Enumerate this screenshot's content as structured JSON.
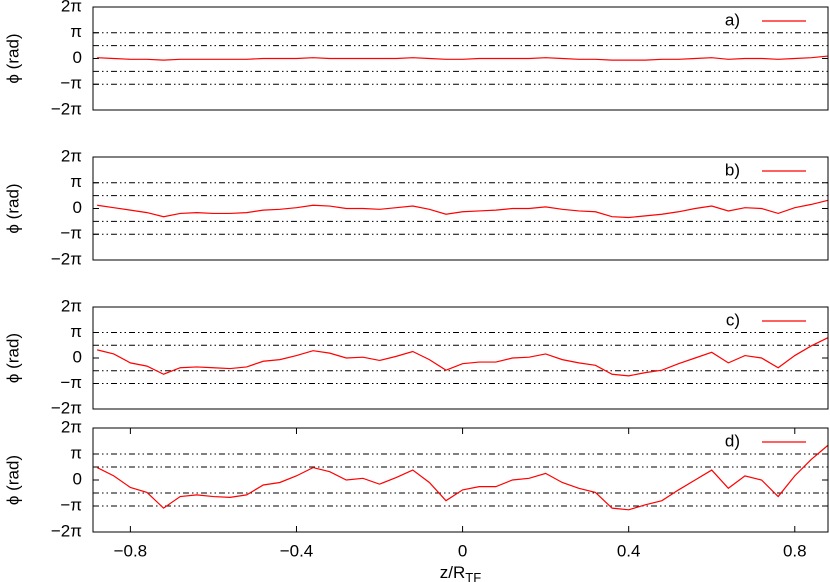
{
  "chart_data": [
    {
      "type": "line",
      "ylabel": "ϕ (rad)",
      "xlim": [
        -0.89,
        0.88
      ],
      "ylim": [
        -6.2832,
        6.2832
      ],
      "yticks": [
        {
          "value": -6.2832,
          "label": "−2π"
        },
        {
          "value": -3.1416,
          "label": "−π"
        },
        0,
        {
          "value": 3.1416,
          "label": "π"
        },
        {
          "value": 6.2832,
          "label": "2π"
        }
      ],
      "reference_lines": [
        3.1416,
        1.5708,
        -1.5708,
        -3.1416
      ],
      "x": [
        -0.88,
        -0.84,
        -0.8,
        -0.76,
        -0.72,
        -0.68,
        -0.64,
        -0.6,
        -0.56,
        -0.52,
        -0.48,
        -0.44,
        -0.4,
        -0.36,
        -0.32,
        -0.28,
        -0.24,
        -0.2,
        -0.16,
        -0.12,
        -0.08,
        -0.04,
        0,
        0.04,
        0.08,
        0.12,
        0.16,
        0.2,
        0.24,
        0.28,
        0.32,
        0.36,
        0.4,
        0.44,
        0.48,
        0.52,
        0.56,
        0.6,
        0.64,
        0.68,
        0.72,
        0.76,
        0.8,
        0.84,
        0.88
      ],
      "series": [
        {
          "name": "a)",
          "color": "#ff0000",
          "values": [
            0.1,
            0.0,
            -0.1,
            -0.1,
            -0.2,
            -0.1,
            -0.1,
            -0.1,
            -0.1,
            -0.1,
            0.0,
            0.0,
            0.0,
            0.1,
            0.0,
            0.0,
            0.0,
            0.0,
            0.0,
            0.1,
            0.0,
            -0.1,
            -0.1,
            0.0,
            0.0,
            0.0,
            0.0,
            0.1,
            0.0,
            -0.1,
            -0.1,
            -0.2,
            -0.2,
            -0.2,
            -0.1,
            -0.1,
            0.0,
            0.1,
            -0.1,
            0.0,
            0.0,
            -0.1,
            0.0,
            0.1,
            0.3
          ]
        }
      ]
    },
    {
      "type": "line",
      "ylabel": "ϕ (rad)",
      "xlim": [
        -0.89,
        0.88
      ],
      "ylim": [
        -6.2832,
        6.2832
      ],
      "yticks": [
        {
          "value": -6.2832,
          "label": "−2π"
        },
        {
          "value": -3.1416,
          "label": "−π"
        },
        0,
        {
          "value": 3.1416,
          "label": "π"
        },
        {
          "value": 6.2832,
          "label": "2π"
        }
      ],
      "reference_lines": [
        3.1416,
        1.5708,
        -1.5708,
        -3.1416
      ],
      "x": [
        -0.88,
        -0.84,
        -0.8,
        -0.76,
        -0.72,
        -0.68,
        -0.64,
        -0.6,
        -0.56,
        -0.52,
        -0.48,
        -0.44,
        -0.4,
        -0.36,
        -0.32,
        -0.28,
        -0.24,
        -0.2,
        -0.16,
        -0.12,
        -0.08,
        -0.04,
        0,
        0.04,
        0.08,
        0.12,
        0.16,
        0.2,
        0.24,
        0.28,
        0.32,
        0.36,
        0.4,
        0.44,
        0.48,
        0.52,
        0.56,
        0.6,
        0.64,
        0.68,
        0.72,
        0.76,
        0.8,
        0.84,
        0.88
      ],
      "series": [
        {
          "name": "b)",
          "color": "#ff0000",
          "values": [
            0.4,
            0.1,
            -0.2,
            -0.5,
            -1.0,
            -0.6,
            -0.5,
            -0.6,
            -0.6,
            -0.5,
            -0.2,
            -0.1,
            0.1,
            0.4,
            0.3,
            0.0,
            0.0,
            -0.1,
            0.1,
            0.3,
            -0.1,
            -0.7,
            -0.4,
            -0.3,
            -0.2,
            0.0,
            0.0,
            0.2,
            -0.1,
            -0.3,
            -0.4,
            -1.0,
            -1.1,
            -0.9,
            -0.7,
            -0.4,
            0.0,
            0.3,
            -0.3,
            0.1,
            0.0,
            -0.6,
            0.1,
            0.5,
            1.0
          ]
        }
      ]
    },
    {
      "type": "line",
      "ylabel": "ϕ (rad)",
      "xlim": [
        -0.89,
        0.88
      ],
      "ylim": [
        -6.2832,
        6.2832
      ],
      "yticks": [
        {
          "value": -6.2832,
          "label": "−2π"
        },
        {
          "value": -3.1416,
          "label": "−π"
        },
        0,
        {
          "value": 3.1416,
          "label": "π"
        },
        {
          "value": 6.2832,
          "label": "2π"
        }
      ],
      "reference_lines": [
        3.1416,
        1.5708,
        -1.5708,
        -3.1416
      ],
      "x": [
        -0.88,
        -0.84,
        -0.8,
        -0.76,
        -0.72,
        -0.68,
        -0.64,
        -0.6,
        -0.56,
        -0.52,
        -0.48,
        -0.44,
        -0.4,
        -0.36,
        -0.32,
        -0.28,
        -0.24,
        -0.2,
        -0.16,
        -0.12,
        -0.08,
        -0.04,
        0,
        0.04,
        0.08,
        0.12,
        0.16,
        0.2,
        0.24,
        0.28,
        0.32,
        0.36,
        0.4,
        0.44,
        0.48,
        0.52,
        0.56,
        0.6,
        0.64,
        0.68,
        0.72,
        0.76,
        0.8,
        0.84,
        0.88
      ],
      "series": [
        {
          "name": "c)",
          "color": "#ff0000",
          "values": [
            1.0,
            0.5,
            -0.6,
            -1.0,
            -2.0,
            -1.2,
            -1.1,
            -1.2,
            -1.3,
            -1.1,
            -0.4,
            -0.2,
            0.3,
            0.9,
            0.6,
            0.0,
            0.1,
            -0.3,
            0.2,
            0.8,
            -0.2,
            -1.5,
            -0.7,
            -0.5,
            -0.5,
            0.0,
            0.1,
            0.5,
            -0.2,
            -0.6,
            -0.9,
            -2.0,
            -2.2,
            -1.8,
            -1.5,
            -0.7,
            0.0,
            0.7,
            -0.6,
            0.3,
            0.0,
            -1.2,
            0.3,
            1.5,
            2.5
          ]
        }
      ]
    },
    {
      "type": "line",
      "ylabel": "ϕ (rad)",
      "xlabel": "z/R",
      "xlabel_sub": "TF",
      "xlim": [
        -0.89,
        0.88
      ],
      "xticks": [
        {
          "value": -0.8,
          "label": "−0.8"
        },
        {
          "value": -0.4,
          "label": "−0.4"
        },
        0,
        0.4,
        0.8
      ],
      "ylim": [
        -6.2832,
        6.2832
      ],
      "yticks": [
        {
          "value": -6.2832,
          "label": "−2π"
        },
        {
          "value": -3.1416,
          "label": "−π"
        },
        0,
        {
          "value": 3.1416,
          "label": "π"
        },
        {
          "value": 6.2832,
          "label": "2π"
        }
      ],
      "reference_lines": [
        3.1416,
        1.5708,
        -1.5708,
        -3.1416
      ],
      "x": [
        -0.88,
        -0.84,
        -0.8,
        -0.76,
        -0.72,
        -0.68,
        -0.64,
        -0.6,
        -0.56,
        -0.52,
        -0.48,
        -0.44,
        -0.4,
        -0.36,
        -0.32,
        -0.28,
        -0.24,
        -0.2,
        -0.16,
        -0.12,
        -0.08,
        -0.04,
        0,
        0.04,
        0.08,
        0.12,
        0.16,
        0.2,
        0.24,
        0.28,
        0.32,
        0.36,
        0.4,
        0.44,
        0.48,
        0.52,
        0.56,
        0.6,
        0.64,
        0.68,
        0.72,
        0.76,
        0.8,
        0.84,
        0.88
      ],
      "series": [
        {
          "name": "d)",
          "color": "#ff0000",
          "values": [
            1.5,
            0.5,
            -0.9,
            -1.5,
            -3.4,
            -2.0,
            -1.8,
            -2.0,
            -2.1,
            -1.8,
            -0.6,
            -0.3,
            0.5,
            1.5,
            1.0,
            0.0,
            0.2,
            -0.5,
            0.3,
            1.2,
            -0.3,
            -2.5,
            -1.2,
            -0.8,
            -0.8,
            0.0,
            0.2,
            0.8,
            -0.3,
            -1.0,
            -1.5,
            -3.4,
            -3.6,
            -3.0,
            -2.5,
            -1.2,
            0.0,
            1.2,
            -1.0,
            0.5,
            0.0,
            -2.0,
            0.5,
            2.5,
            4.2
          ]
        }
      ]
    }
  ]
}
